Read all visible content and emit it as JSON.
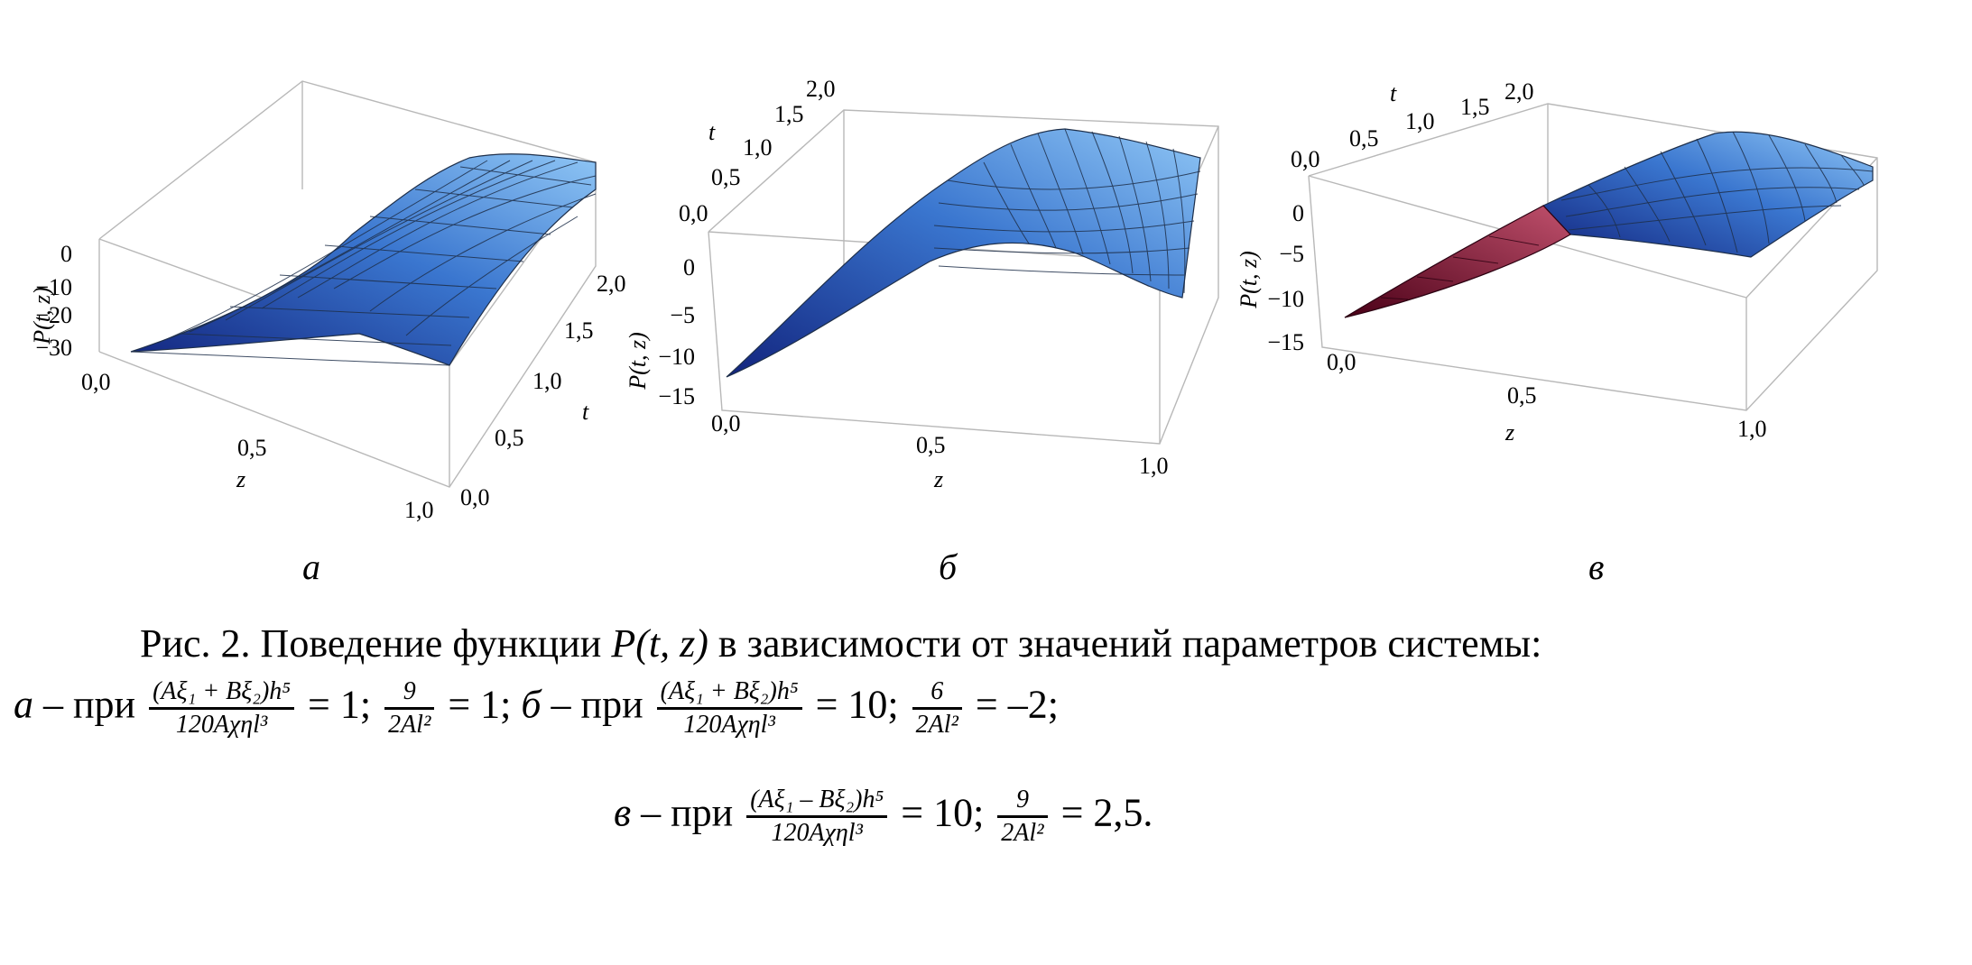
{
  "colors": {
    "surface_light": "#8fc6f5",
    "surface_dark": "#12247e",
    "surface_red_light": "#c0506c",
    "surface_red_dark": "#4a0017",
    "mesh": "#1e2f4a",
    "box": "#b8b8b8"
  },
  "panels": [
    {
      "label": "а",
      "p_axis": "P(t, z)",
      "z_axis": "z",
      "t_axis": "t",
      "p_ticks": [
        "0",
        "−10",
        "−20",
        "−30"
      ],
      "z_ticks": [
        "0,0",
        "0,5",
        "1,0"
      ],
      "t_ticks": [
        "0,0",
        "0,5",
        "1,0",
        "1,5",
        "2,0"
      ]
    },
    {
      "label": "б",
      "p_axis": "P(t, z)",
      "z_axis": "z",
      "t_axis": "t",
      "p_ticks": [
        "0",
        "−5",
        "−10",
        "−15"
      ],
      "z_ticks": [
        "0,0",
        "0,5",
        "1,0"
      ],
      "t_ticks": [
        "0,0",
        "0,5",
        "1,0",
        "1,5",
        "2,0"
      ]
    },
    {
      "label": "в",
      "p_axis": "P(t, z)",
      "z_axis": "z",
      "t_axis": "t",
      "p_ticks": [
        "0",
        "−5",
        "−10",
        "−15"
      ],
      "z_ticks": [
        "0,0",
        "0,5",
        "1,0"
      ],
      "t_ticks": [
        "0,0",
        "0,5",
        "1,0",
        "1,5",
        "2,0"
      ]
    }
  ],
  "caption": {
    "line1_pre": "Рис. 2. Поведение функции ",
    "line1_func": "P(t, z)",
    "line1_post": " в зависимости от значений параметров системы:",
    "a_label": "а",
    "b_label": "б",
    "c_label": "в",
    "pri": " – при ",
    "a_num": "(Aξ₁ + Bξ₂)h⁵",
    "a_den": "120Aχηl³",
    "a_eq1": " = 1; ",
    "a_num2": "9",
    "a_den2": "2Al²",
    "a_eq2": " = 1; ",
    "b_num": "(Aξ₁ + Bξ₂)h⁵",
    "b_den": "120Aχηl³",
    "b_eq1": " = 10; ",
    "b_num2": "6",
    "b_den2": "2Al²",
    "b_eq2": " = –2;",
    "c_num": "(Aξ₁ – Bξ₂)h⁵",
    "c_den": "120Aχηl³",
    "c_eq1": " = 10; ",
    "c_num2": "9",
    "c_den2": "2Al²",
    "c_eq2": " = 2,5."
  },
  "chart_data": [
    {
      "type": "surface",
      "panel": "а",
      "xlabel": "z",
      "ylabel": "t",
      "zlabel": "P(t, z)",
      "xlim": [
        0,
        1
      ],
      "ylim": [
        0,
        2
      ],
      "zlim": [
        -35,
        0
      ],
      "z_values": [
        0,
        0.5,
        1
      ],
      "t_values": [
        0,
        0.5,
        1,
        1.5,
        2
      ],
      "series": [
        {
          "t": 0,
          "P": [
            -30,
            -15,
            -8
          ]
        },
        {
          "t": 1,
          "P": [
            -28,
            -12,
            -5
          ]
        },
        {
          "t": 2,
          "P": [
            -24,
            -8,
            -2
          ]
        }
      ]
    },
    {
      "type": "surface",
      "panel": "б",
      "xlabel": "z",
      "ylabel": "t",
      "zlabel": "P(t, z)",
      "xlim": [
        0,
        1
      ],
      "ylim": [
        0,
        2
      ],
      "zlim": [
        -15,
        0
      ],
      "z_values": [
        0,
        0.5,
        1
      ],
      "t_values": [
        0,
        0.5,
        1,
        1.5,
        2
      ],
      "series": [
        {
          "t": 0,
          "P": [
            -13,
            -4,
            -1
          ]
        },
        {
          "t": 1,
          "P": [
            -12,
            -1.5,
            0
          ]
        },
        {
          "t": 2,
          "P": [
            -11,
            0,
            0
          ]
        }
      ]
    },
    {
      "type": "surface",
      "panel": "в",
      "xlabel": "z",
      "ylabel": "t",
      "zlabel": "P(t, z)",
      "xlim": [
        0,
        1
      ],
      "ylim": [
        0,
        2
      ],
      "zlim": [
        -15,
        0
      ],
      "z_values": [
        0,
        0.5,
        1
      ],
      "t_values": [
        0,
        0.5,
        1,
        1.5,
        2
      ],
      "series": [
        {
          "t": 0,
          "P": [
            -10,
            -2,
            -3
          ]
        },
        {
          "t": 1,
          "P": [
            -9,
            0,
            -1
          ]
        },
        {
          "t": 2,
          "P": [
            -8,
            0.5,
            0
          ]
        }
      ]
    }
  ]
}
